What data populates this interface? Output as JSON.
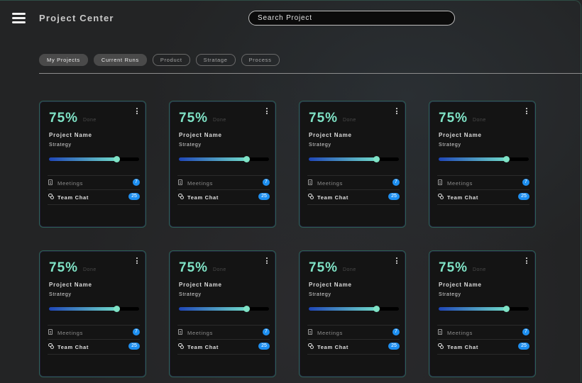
{
  "header": {
    "title": "Project Center",
    "search_placeholder": "Search Project",
    "menu_icon": "hamburger-menu-icon"
  },
  "filters": [
    {
      "label": "My Projects",
      "style": "filled"
    },
    {
      "label": "Current Runs",
      "style": "filled"
    },
    {
      "label": "Product",
      "style": "outline"
    },
    {
      "label": "Stratage",
      "style": "outline"
    },
    {
      "label": "Process",
      "style": "outline"
    }
  ],
  "colors": {
    "accent": "#7fe3c6",
    "badge": "#1e8ff0",
    "progress_start": "#1f46b8",
    "card_border": "#2c6156"
  },
  "cards": [
    {
      "percent": "75%",
      "done_label": "Done",
      "name": "Project Name",
      "subtitle": "Strategy",
      "progress": 0.75,
      "meetings_label": "Meetings",
      "meetings_count": "7",
      "chat_label": "Team Chat",
      "chat_count": "25",
      "meetings_icon": "document-icon",
      "chat_icon": "chat-bubbles-icon"
    },
    {
      "percent": "75%",
      "done_label": "Done",
      "name": "Project Name",
      "subtitle": "Strategy",
      "progress": 0.75,
      "meetings_label": "Meetings",
      "meetings_count": "7",
      "chat_label": "Team Chat",
      "chat_count": "25",
      "meetings_icon": "document-icon",
      "chat_icon": "chat-bubbles-icon"
    },
    {
      "percent": "75%",
      "done_label": "Done",
      "name": "Project Name",
      "subtitle": "Strategy",
      "progress": 0.75,
      "meetings_label": "Meetings",
      "meetings_count": "7",
      "chat_label": "Team Chat",
      "chat_count": "25",
      "meetings_icon": "document-icon",
      "chat_icon": "chat-bubbles-icon"
    },
    {
      "percent": "75%",
      "done_label": "Done",
      "name": "Project Name",
      "subtitle": "Strategy",
      "progress": 0.75,
      "meetings_label": "Meetings",
      "meetings_count": "7",
      "chat_label": "Team Chat",
      "chat_count": "25",
      "meetings_icon": "document-icon",
      "chat_icon": "chat-bubbles-icon"
    },
    {
      "percent": "75%",
      "done_label": "Done",
      "name": "Project Name",
      "subtitle": "Strategy",
      "progress": 0.75,
      "meetings_label": "Meetings",
      "meetings_count": "7",
      "chat_label": "Team Chat",
      "chat_count": "25",
      "meetings_icon": "document-icon",
      "chat_icon": "chat-bubbles-icon"
    },
    {
      "percent": "75%",
      "done_label": "Done",
      "name": "Project Name",
      "subtitle": "Strategy",
      "progress": 0.75,
      "meetings_label": "Meetings",
      "meetings_count": "7",
      "chat_label": "Team Chat",
      "chat_count": "25",
      "meetings_icon": "document-icon",
      "chat_icon": "chat-bubbles-icon"
    },
    {
      "percent": "75%",
      "done_label": "Done",
      "name": "Project Name",
      "subtitle": "Strategy",
      "progress": 0.75,
      "meetings_label": "Meetings",
      "meetings_count": "7",
      "chat_label": "Team Chat",
      "chat_count": "25",
      "meetings_icon": "document-icon",
      "chat_icon": "chat-bubbles-icon"
    },
    {
      "percent": "75%",
      "done_label": "Done",
      "name": "Project Name",
      "subtitle": "Strategy",
      "progress": 0.75,
      "meetings_label": "Meetings",
      "meetings_count": "7",
      "chat_label": "Team Chat",
      "chat_count": "25",
      "meetings_icon": "document-icon",
      "chat_icon": "chat-bubbles-icon"
    }
  ]
}
